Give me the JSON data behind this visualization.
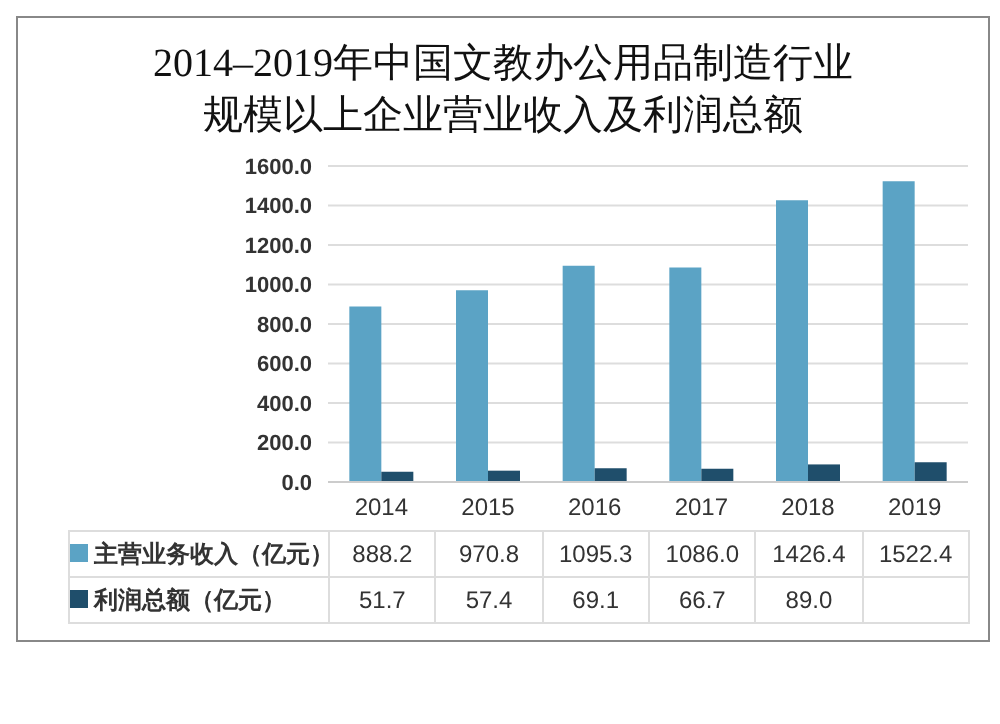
{
  "chart_data": {
    "type": "bar",
    "title": "2014–2019年中国文教办公用品制造行业规模以上企业营业收入及利润总额",
    "categories": [
      "2014",
      "2015",
      "2016",
      "2017",
      "2018",
      "2019"
    ],
    "series": [
      {
        "name": "主营业务收入（亿元）",
        "color": "#5ba3c5",
        "values": [
          888.2,
          970.8,
          1095.3,
          1086.0,
          1426.4,
          1522.4
        ],
        "value_labels": [
          "888.2",
          "970.8",
          "1095.3",
          "1086.0",
          "1426.4",
          "1522.4"
        ]
      },
      {
        "name": "利润总额（亿元）",
        "color": "#1f4e6b",
        "values": [
          51.7,
          57.4,
          69.1,
          66.7,
          89.0,
          100
        ],
        "value_labels": [
          "51.7",
          "57.4",
          "69.1",
          "66.7",
          "89.0",
          null
        ]
      }
    ],
    "ylim": [
      0,
      1600
    ],
    "yticks": [
      {
        "value": 0,
        "label": "0.0"
      },
      {
        "value": 200,
        "label": "200.0"
      },
      {
        "value": 400,
        "label": "400.0"
      },
      {
        "value": 600,
        "label": "600.0"
      },
      {
        "value": 800,
        "label": "800.0"
      },
      {
        "value": 1000,
        "label": "1000.0"
      },
      {
        "value": 1200,
        "label": "1200.0"
      },
      {
        "value": 1400,
        "label": "1400.0"
      },
      {
        "value": 1600,
        "label": "1600.0"
      }
    ],
    "grid": "y",
    "legend": "bottom left"
  }
}
